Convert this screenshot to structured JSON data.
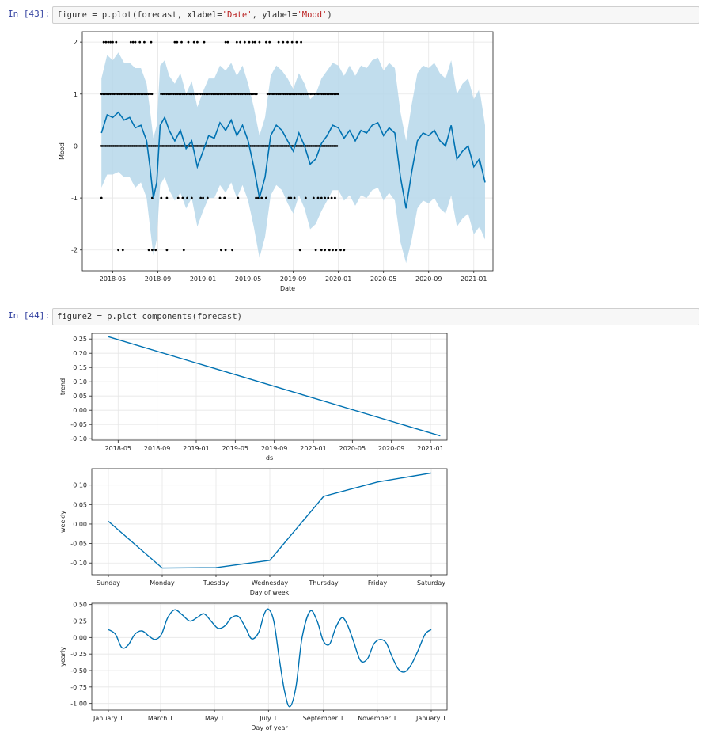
{
  "cells": [
    {
      "prompt": "In [43]:",
      "code_prefix": "figure = p.plot(forecast, xlabel=",
      "code_s1": "'Date'",
      "code_mid": ", ylabel=",
      "code_s2": "'Mood'",
      "code_suffix": ")"
    },
    {
      "prompt": "In [44]:",
      "code": "figure2 = p.plot_components(forecast)"
    }
  ],
  "colors": {
    "line": "#0072b2",
    "band": "#b6d7ea",
    "point": "#000000",
    "grid": "#e6e6e6"
  },
  "chart_data": [
    {
      "type": "line",
      "xlabel": "Date",
      "ylabel": "Mood",
      "x_ticks": [
        "2018-05",
        "2018-09",
        "2019-01",
        "2019-05",
        "2019-09",
        "2020-01",
        "2020-05",
        "2020-09",
        "2021-01"
      ],
      "y_ticks": [
        "-2",
        "-1",
        "0",
        "1",
        "2"
      ],
      "ylim": [
        -2.4,
        2.2
      ],
      "xlim_months": [
        1.3,
        37.7
      ],
      "grid": true,
      "series": [
        {
          "kind": "forecast_line",
          "x_months": [
            3.0,
            3.5,
            4,
            4.5,
            5,
            5.5,
            6,
            6.5,
            7,
            7.3,
            7.6,
            7.9,
            8.2,
            8.6,
            9,
            9.5,
            10,
            10.5,
            11,
            11.5,
            12,
            12.5,
            13,
            13.5,
            14,
            14.5,
            15,
            15.5,
            16,
            16.5,
            17,
            17.5,
            18,
            18.5,
            19,
            19.5,
            20,
            20.5,
            21,
            21.5,
            22,
            22.5,
            23,
            23.5,
            24,
            24.5,
            25,
            25.5,
            26,
            26.5,
            27,
            27.5,
            28,
            28.5,
            29,
            29.5,
            30,
            30.5,
            31,
            31.5,
            32,
            32.5,
            33,
            33.5,
            34,
            34.5,
            35,
            35.5,
            36,
            36.5,
            37
          ],
          "y": [
            0.25,
            0.6,
            0.55,
            0.65,
            0.5,
            0.55,
            0.35,
            0.4,
            0.1,
            -0.4,
            -1.0,
            -0.7,
            0.4,
            0.55,
            0.3,
            0.1,
            0.3,
            -0.05,
            0.1,
            -0.4,
            -0.1,
            0.2,
            0.15,
            0.45,
            0.3,
            0.5,
            0.2,
            0.4,
            0.1,
            -0.4,
            -1.0,
            -0.6,
            0.2,
            0.4,
            0.3,
            0.1,
            -0.1,
            0.25,
            0.0,
            -0.35,
            -0.25,
            0.05,
            0.2,
            0.4,
            0.35,
            0.15,
            0.3,
            0.1,
            0.3,
            0.25,
            0.4,
            0.45,
            0.2,
            0.35,
            0.25,
            -0.6,
            -1.2,
            -0.5,
            0.1,
            0.25,
            0.2,
            0.3,
            0.1,
            0.0,
            0.4,
            -0.25,
            -0.1,
            0.0,
            -0.4,
            -0.25,
            -0.7
          ]
        },
        {
          "kind": "uncertainty_band",
          "x_months": [
            3.0,
            3.5,
            4,
            4.5,
            5,
            5.5,
            6,
            6.5,
            7,
            7.3,
            7.6,
            7.9,
            8.2,
            8.6,
            9,
            9.5,
            10,
            10.5,
            11,
            11.5,
            12,
            12.5,
            13,
            13.5,
            14,
            14.5,
            15,
            15.5,
            16,
            16.5,
            17,
            17.5,
            18,
            18.5,
            19,
            19.5,
            20,
            20.5,
            21,
            21.5,
            22,
            22.5,
            23,
            23.5,
            24,
            24.5,
            25,
            25.5,
            26,
            26.5,
            27,
            27.5,
            28,
            28.5,
            29,
            29.5,
            30,
            30.5,
            31,
            31.5,
            32,
            32.5,
            33,
            33.5,
            34,
            34.5,
            35,
            35.5,
            36,
            36.5,
            37
          ],
          "upper": [
            1.3,
            1.75,
            1.65,
            1.8,
            1.6,
            1.6,
            1.5,
            1.5,
            1.2,
            0.7,
            0.15,
            0.4,
            1.55,
            1.65,
            1.35,
            1.2,
            1.4,
            1.0,
            1.25,
            0.75,
            1.05,
            1.3,
            1.3,
            1.55,
            1.45,
            1.6,
            1.35,
            1.55,
            1.2,
            0.75,
            0.2,
            0.55,
            1.35,
            1.55,
            1.45,
            1.3,
            1.1,
            1.4,
            1.2,
            0.9,
            1.0,
            1.3,
            1.45,
            1.6,
            1.55,
            1.35,
            1.55,
            1.35,
            1.55,
            1.5,
            1.65,
            1.7,
            1.45,
            1.6,
            1.5,
            0.65,
            0.1,
            0.8,
            1.4,
            1.55,
            1.5,
            1.6,
            1.4,
            1.3,
            1.65,
            1.0,
            1.2,
            1.3,
            0.9,
            1.1,
            0.4
          ],
          "lower": [
            -0.8,
            -0.55,
            -0.55,
            -0.5,
            -0.6,
            -0.6,
            -0.8,
            -0.7,
            -1.0,
            -1.55,
            -2.1,
            -1.8,
            -0.75,
            -0.6,
            -0.85,
            -1.05,
            -0.9,
            -1.2,
            -1.0,
            -1.55,
            -1.25,
            -1.0,
            -1.0,
            -0.75,
            -0.9,
            -0.7,
            -1.0,
            -0.75,
            -1.05,
            -1.55,
            -2.15,
            -1.75,
            -0.95,
            -0.75,
            -0.85,
            -1.1,
            -1.3,
            -0.95,
            -1.2,
            -1.6,
            -1.5,
            -1.25,
            -1.05,
            -0.85,
            -0.85,
            -1.05,
            -0.95,
            -1.15,
            -0.95,
            -1.0,
            -0.85,
            -0.8,
            -1.05,
            -0.9,
            -1.05,
            -1.85,
            -2.25,
            -1.8,
            -1.2,
            -1.05,
            -1.1,
            -1.0,
            -1.2,
            -1.3,
            -0.95,
            -1.55,
            -1.4,
            -1.3,
            -1.7,
            -1.55,
            -1.8
          ]
        },
        {
          "kind": "observations",
          "points": [
            [
              3.2,
              2
            ],
            [
              3.4,
              2
            ],
            [
              3.6,
              2
            ],
            [
              3.8,
              2
            ],
            [
              4.0,
              2
            ],
            [
              4.3,
              2
            ],
            [
              5.6,
              2
            ],
            [
              5.8,
              2
            ],
            [
              6.0,
              2
            ],
            [
              6.4,
              2
            ],
            [
              6.8,
              2
            ],
            [
              7.4,
              2
            ],
            [
              9.5,
              2
            ],
            [
              9.7,
              2
            ],
            [
              10.1,
              2
            ],
            [
              10.7,
              2
            ],
            [
              11.2,
              2
            ],
            [
              11.5,
              2
            ],
            [
              12.1,
              2
            ],
            [
              14.0,
              2
            ],
            [
              14.2,
              2
            ],
            [
              15.0,
              2
            ],
            [
              15.3,
              2
            ],
            [
              15.7,
              2
            ],
            [
              16.1,
              2
            ],
            [
              16.4,
              2
            ],
            [
              16.6,
              2
            ],
            [
              17.0,
              2
            ],
            [
              17.6,
              2
            ],
            [
              17.9,
              2
            ],
            [
              18.7,
              2
            ],
            [
              19.1,
              2
            ],
            [
              19.5,
              2
            ],
            [
              19.9,
              2
            ],
            [
              20.3,
              2
            ],
            [
              20.7,
              2
            ],
            [
              3.0,
              -1
            ],
            [
              7.5,
              -1
            ],
            [
              8.3,
              -1
            ],
            [
              8.8,
              -1
            ],
            [
              9.8,
              -1
            ],
            [
              10.2,
              -1
            ],
            [
              10.6,
              -1
            ],
            [
              11.0,
              -1
            ],
            [
              11.8,
              -1
            ],
            [
              12.0,
              -1
            ],
            [
              12.4,
              -1
            ],
            [
              13.5,
              -1
            ],
            [
              13.9,
              -1
            ],
            [
              15.1,
              -1
            ],
            [
              16.7,
              -1
            ],
            [
              16.9,
              -1
            ],
            [
              17.2,
              -1
            ],
            [
              17.6,
              -1
            ],
            [
              19.6,
              -1
            ],
            [
              19.8,
              -1
            ],
            [
              20.1,
              -1
            ],
            [
              21.1,
              -1
            ],
            [
              21.8,
              -1
            ],
            [
              22.2,
              -1
            ],
            [
              22.5,
              -1
            ],
            [
              22.8,
              -1
            ],
            [
              23.1,
              -1
            ],
            [
              23.4,
              -1
            ],
            [
              23.7,
              -1
            ],
            [
              4.5,
              -2
            ],
            [
              4.9,
              -2
            ],
            [
              7.2,
              -2
            ],
            [
              7.5,
              -2
            ],
            [
              7.8,
              -2
            ],
            [
              8.8,
              -2
            ],
            [
              10.3,
              -2
            ],
            [
              13.6,
              -2
            ],
            [
              14.0,
              -2
            ],
            [
              14.6,
              -2
            ],
            [
              20.6,
              -2
            ],
            [
              22.0,
              -2
            ],
            [
              22.5,
              -2
            ],
            [
              22.8,
              -2
            ],
            [
              23.2,
              -2
            ],
            [
              23.5,
              -2
            ],
            [
              23.8,
              -2
            ],
            [
              24.2,
              -2
            ],
            [
              24.5,
              -2
            ]
          ]
        }
      ]
    },
    {
      "type": "line",
      "xlabel": "ds",
      "ylabel": "trend",
      "x_ticks": [
        "2018-05",
        "2018-09",
        "2019-01",
        "2019-05",
        "2019-09",
        "2020-01",
        "2020-05",
        "2020-09",
        "2021-01"
      ],
      "y_ticks": [
        "0.25",
        "0.20",
        "0.15",
        "0.10",
        "0.05",
        "0.00",
        "-0.05",
        "-0.10"
      ],
      "ylim": [
        -0.105,
        0.27
      ],
      "xlim_months": [
        1.3,
        37.7
      ],
      "grid": true,
      "series": [
        {
          "x_months": [
            3.0,
            37.0
          ],
          "y": [
            0.258,
            -0.09
          ]
        }
      ]
    },
    {
      "type": "line",
      "xlabel": "Day of week",
      "ylabel": "weekly",
      "categories": [
        "Sunday",
        "Monday",
        "Tuesday",
        "Wednesday",
        "Thursday",
        "Friday",
        "Saturday"
      ],
      "y_ticks": [
        "0.10",
        "0.05",
        "0.00",
        "-0.05",
        "-0.10"
      ],
      "ylim": [
        -0.13,
        0.142
      ],
      "grid": true,
      "series": [
        {
          "values": [
            0.007,
            -0.113,
            -0.112,
            -0.093,
            0.071,
            0.108,
            0.131
          ]
        }
      ]
    },
    {
      "type": "line",
      "xlabel": "Day of year",
      "ylabel": "yearly",
      "x_ticks": [
        "January 1",
        "March 1",
        "May 1",
        "July 1",
        "September 1",
        "November 1",
        "January 1"
      ],
      "x_tick_days": [
        0,
        59,
        120,
        181,
        243,
        304,
        365
      ],
      "y_ticks": [
        "0.50",
        "0.25",
        "0.00",
        "-0.25",
        "-0.50",
        "-0.75",
        "-1.00"
      ],
      "ylim": [
        -1.1,
        0.52
      ],
      "grid": true,
      "series": [
        {
          "x_days": [
            0,
            8,
            15,
            22,
            30,
            38,
            46,
            53,
            60,
            67,
            75,
            83,
            92,
            100,
            108,
            116,
            124,
            132,
            139,
            147,
            155,
            162,
            170,
            176,
            181,
            187,
            193,
            199,
            205,
            212,
            219,
            228,
            236,
            243,
            250,
            257,
            264,
            270,
            277,
            285,
            293,
            300,
            307,
            314,
            321,
            328,
            335,
            342,
            350,
            358,
            365
          ],
          "y": [
            0.12,
            0.05,
            -0.15,
            -0.12,
            0.05,
            0.1,
            0.02,
            -0.03,
            0.05,
            0.3,
            0.42,
            0.35,
            0.25,
            0.3,
            0.36,
            0.25,
            0.14,
            0.18,
            0.3,
            0.32,
            0.15,
            -0.02,
            0.08,
            0.35,
            0.43,
            0.25,
            -0.3,
            -0.8,
            -1.05,
            -0.75,
            0.0,
            0.4,
            0.25,
            -0.05,
            -0.1,
            0.15,
            0.3,
            0.2,
            -0.05,
            -0.35,
            -0.32,
            -0.1,
            -0.03,
            -0.08,
            -0.3,
            -0.48,
            -0.52,
            -0.42,
            -0.2,
            0.05,
            0.12
          ]
        }
      ]
    }
  ]
}
